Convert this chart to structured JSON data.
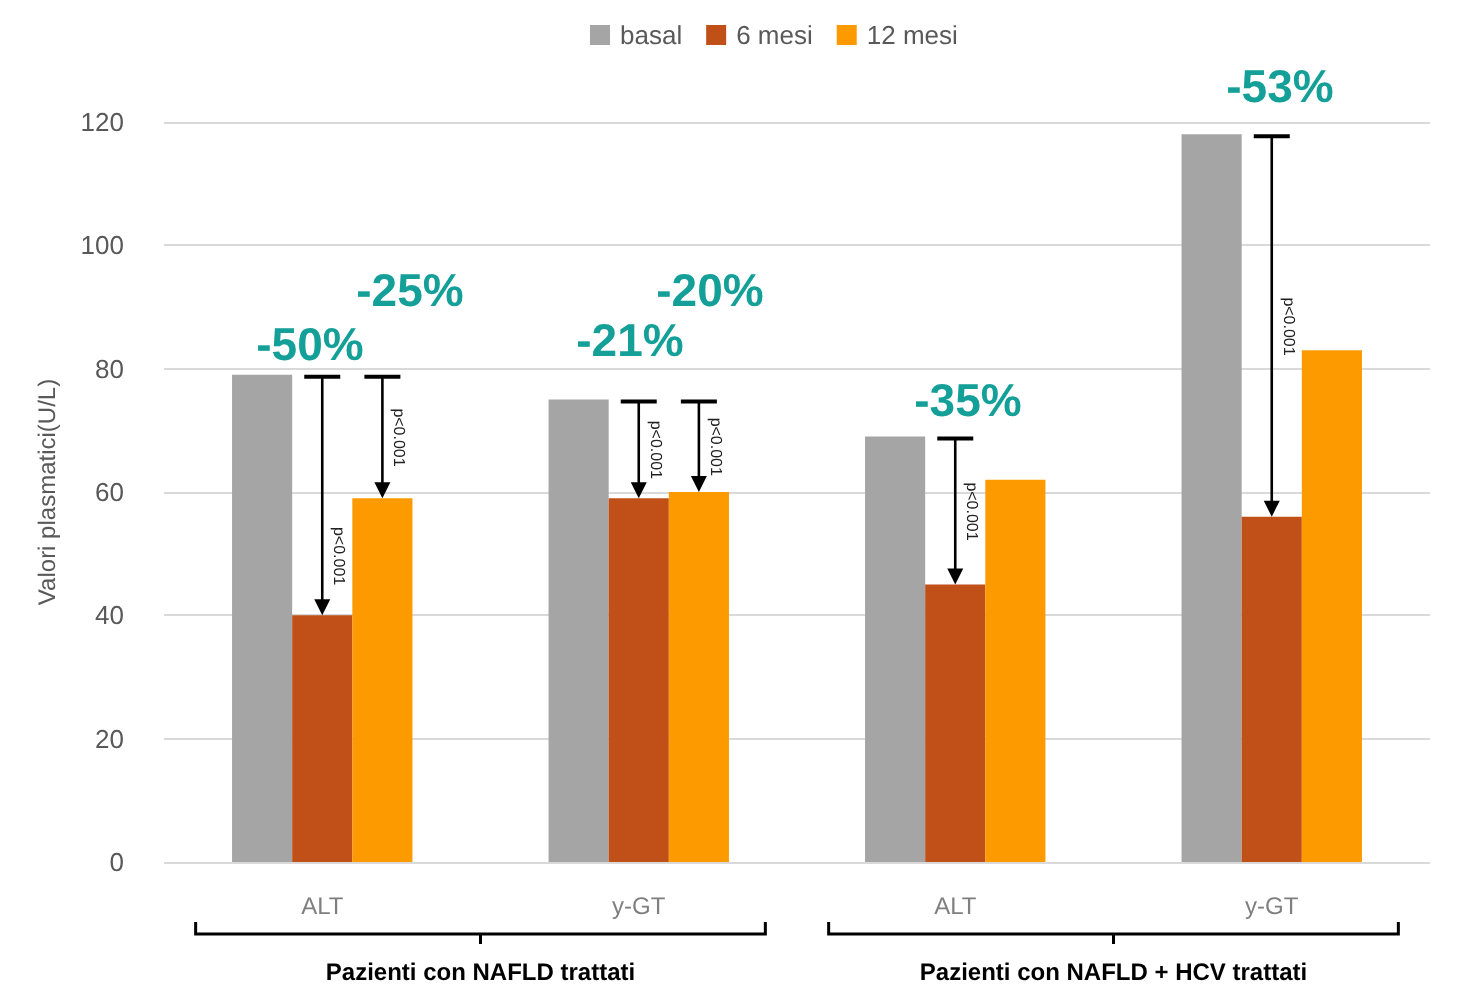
{
  "chart_data": {
    "type": "bar",
    "ylabel": "Valori plasmatici(U/L)",
    "categories": [
      "ALT",
      "y-GT",
      "ALT",
      "y-GT"
    ],
    "series": [
      {
        "name": "basal",
        "color": "#a5a5a5",
        "values": [
          79,
          75,
          69,
          118
        ]
      },
      {
        "name": "6 mesi",
        "color": "#c05018",
        "values": [
          40,
          59,
          45,
          56
        ]
      },
      {
        "name": "12 mesi",
        "color": "#fd9a00",
        "values": [
          59,
          60,
          62,
          83
        ]
      }
    ],
    "ylim": [
      0,
      120
    ],
    "yticks": [
      0,
      20,
      40,
      60,
      80,
      100,
      120
    ],
    "grid": "y",
    "legend": "top",
    "annotations": [
      "-50%",
      "-25%",
      "-21%",
      "-20%",
      "-35%",
      "-53%",
      "p<0.001",
      "p<0.001",
      "p<0.001",
      "p<0.001",
      "p<0.001",
      "p<0.001",
      "Pazienti con NAFLD trattati",
      "Pazienti con NAFLD + HCV trattati"
    ]
  }
}
